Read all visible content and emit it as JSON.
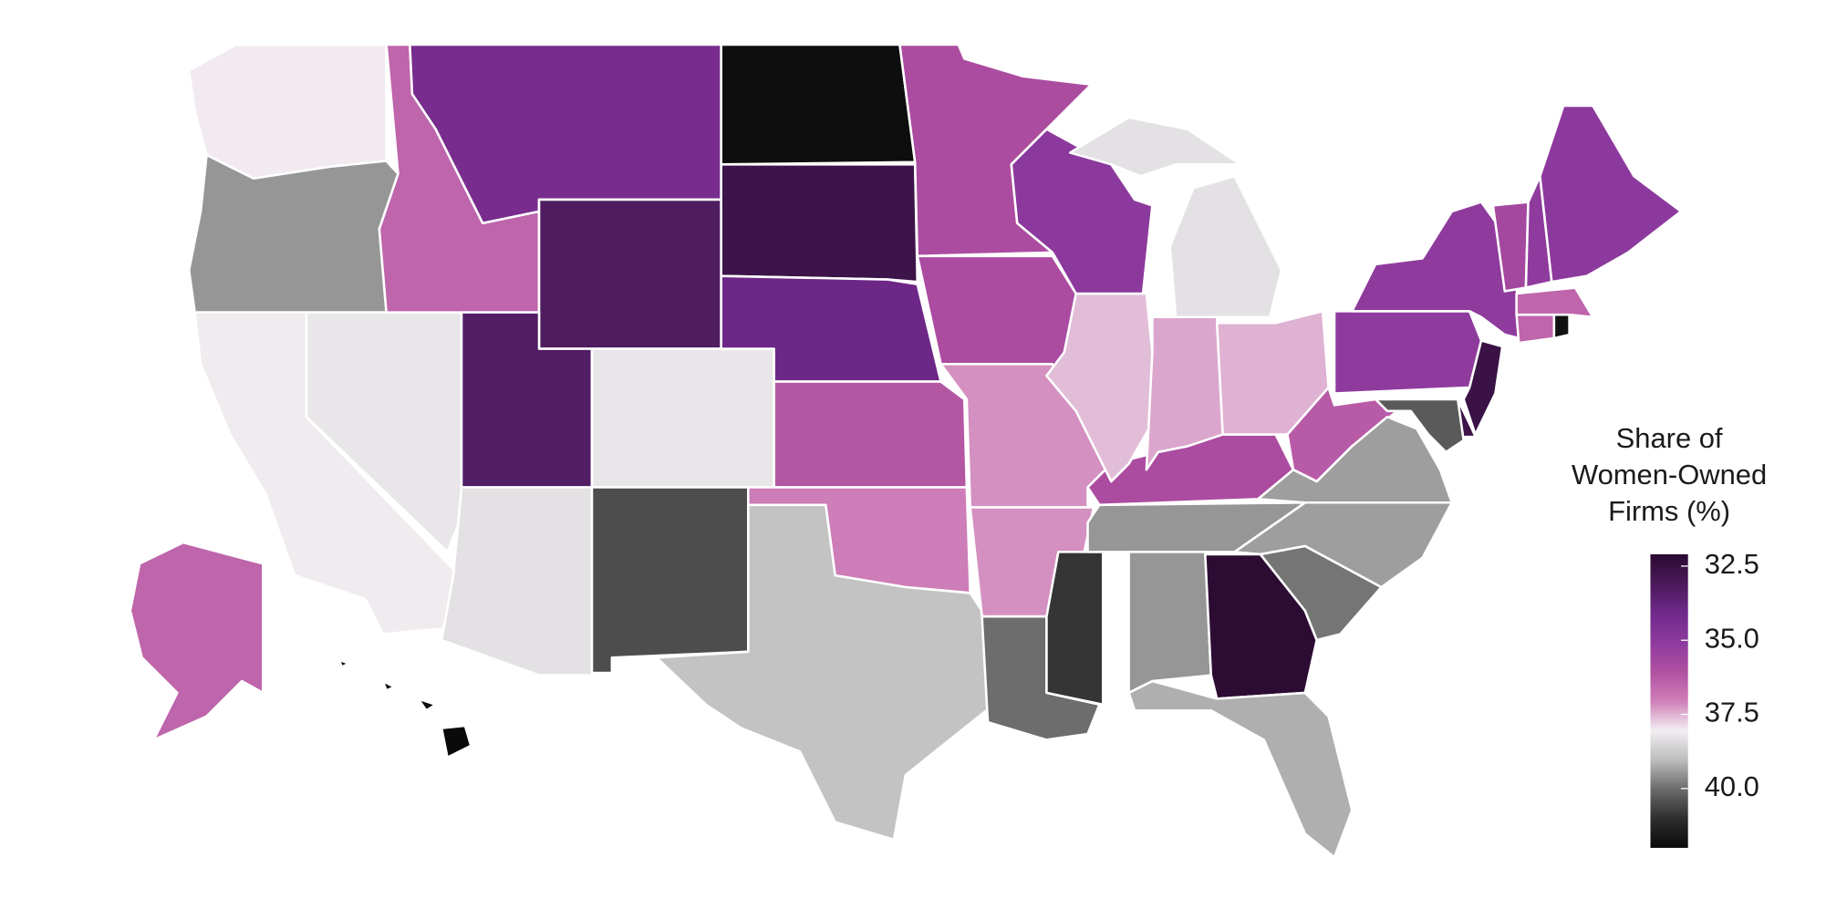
{
  "chart_data": {
    "type": "choropleth",
    "values": [
      38.0,
      39.5,
      38.1,
      38.2,
      36.5,
      34.3,
      33.2,
      33.3,
      38.2,
      38.3,
      40.5,
      41.9,
      32.7,
      34.0,
      36.2,
      37.0,
      38.9,
      35.9,
      35.9,
      37.2,
      37.2,
      40.0,
      40.9,
      39.5,
      32.2,
      39.2,
      39.9,
      39.4,
      39.5,
      35.9,
      37.6,
      35.0,
      38.3,
      37.4,
      37.5,
      36.3,
      39.4,
      35.1,
      35.1,
      32.6,
      32.7,
      40.3,
      36.5,
      41.8,
      36.5,
      35.7,
      35.1,
      35.0,
      36.5,
      42.0
    ],
    "colors": [
      "#2a0a30",
      "#4a1a5a",
      "#70288a",
      "#8e3a9e",
      "#b050a0",
      "#cf7fb8",
      "#f2eef2",
      "#bdbdbd",
      "#6b6b6b",
      "#2e2e2e",
      "#0a0a0a"
    ],
    "legend_title": [
      "Share of",
      "Women-Owned",
      "Firms (%)"
    ],
    "legend_lim": [
      32.1,
      42
    ],
    "legend_ticks": [
      32.5,
      {
        "value": 35,
        "label": "35.0"
      },
      37.5,
      {
        "value": 40,
        "label": "40.0"
      }
    ]
  }
}
